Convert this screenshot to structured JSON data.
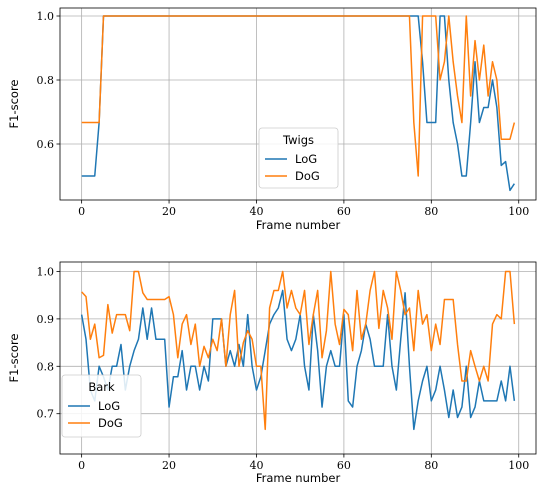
{
  "chart_data": [
    {
      "type": "line",
      "title": "",
      "xlabel": "Frame number",
      "ylabel": "F1-score",
      "xlim": [
        -4.95,
        103.95
      ],
      "ylim": [
        0.425,
        1.025
      ],
      "xticks": [
        0,
        20,
        40,
        60,
        80,
        100
      ],
      "yticks": [
        0.6,
        0.8,
        1.0
      ],
      "xtick_labels": [
        "0",
        "20",
        "40",
        "60",
        "80",
        "100"
      ],
      "ytick_labels": [
        "0.6",
        "0.8",
        "1.0"
      ],
      "grid": true,
      "legend": {
        "title": "Twigs",
        "placement": "lower center"
      },
      "series": [
        {
          "name": "LoG",
          "color": "#1f77b4",
          "x": [
            0,
            1,
            2,
            3,
            4,
            5,
            6,
            7,
            8,
            9,
            10,
            11,
            12,
            13,
            14,
            15,
            16,
            17,
            18,
            19,
            20,
            21,
            22,
            23,
            24,
            25,
            26,
            27,
            28,
            29,
            30,
            31,
            32,
            33,
            34,
            35,
            36,
            37,
            38,
            39,
            40,
            41,
            42,
            43,
            44,
            45,
            46,
            47,
            48,
            49,
            50,
            51,
            52,
            53,
            54,
            55,
            56,
            57,
            58,
            59,
            60,
            61,
            62,
            63,
            64,
            65,
            66,
            67,
            68,
            69,
            70,
            71,
            72,
            73,
            74,
            75,
            76,
            77,
            78,
            79,
            80,
            81,
            82,
            83,
            84,
            85,
            86,
            87,
            88,
            89,
            90,
            91,
            92,
            93,
            94,
            95,
            96,
            97,
            98,
            99
          ],
          "values": [
            0.5,
            0.5,
            0.5,
            0.5,
            0.667,
            1,
            1,
            1,
            1,
            1,
            1,
            1,
            1,
            1,
            1,
            1,
            1,
            1,
            1,
            1,
            1,
            1,
            1,
            1,
            1,
            1,
            1,
            1,
            1,
            1,
            1,
            1,
            1,
            1,
            1,
            1,
            1,
            1,
            1,
            1,
            1,
            1,
            1,
            1,
            1,
            1,
            1,
            1,
            1,
            1,
            1,
            1,
            1,
            1,
            1,
            1,
            1,
            1,
            1,
            1,
            1,
            1,
            1,
            1,
            1,
            1,
            1,
            1,
            1,
            1,
            1,
            1,
            1,
            1,
            1,
            1,
            1,
            1,
            0.857,
            0.667,
            0.667,
            0.667,
            1,
            1,
            0.8,
            0.667,
            0.6,
            0.5,
            0.5,
            0.667,
            0.857,
            0.667,
            0.714,
            0.714,
            0.8,
            0.714,
            0.533,
            0.545,
            0.455,
            0.476
          ]
        },
        {
          "name": "DoG",
          "color": "#ff7f0e",
          "x": [
            0,
            1,
            2,
            3,
            4,
            5,
            6,
            7,
            8,
            9,
            10,
            11,
            12,
            13,
            14,
            15,
            16,
            17,
            18,
            19,
            20,
            21,
            22,
            23,
            24,
            25,
            26,
            27,
            28,
            29,
            30,
            31,
            32,
            33,
            34,
            35,
            36,
            37,
            38,
            39,
            40,
            41,
            42,
            43,
            44,
            45,
            46,
            47,
            48,
            49,
            50,
            51,
            52,
            53,
            54,
            55,
            56,
            57,
            58,
            59,
            60,
            61,
            62,
            63,
            64,
            65,
            66,
            67,
            68,
            69,
            70,
            71,
            72,
            73,
            74,
            75,
            76,
            77,
            78,
            79,
            80,
            81,
            82,
            83,
            84,
            85,
            86,
            87,
            88,
            89,
            90,
            91,
            92,
            93,
            94,
            95,
            96,
            97,
            98,
            99
          ],
          "values": [
            0.667,
            0.667,
            0.667,
            0.667,
            0.667,
            1,
            1,
            1,
            1,
            1,
            1,
            1,
            1,
            1,
            1,
            1,
            1,
            1,
            1,
            1,
            1,
            1,
            1,
            1,
            1,
            1,
            1,
            1,
            1,
            1,
            1,
            1,
            1,
            1,
            1,
            1,
            1,
            1,
            1,
            1,
            1,
            1,
            1,
            1,
            1,
            1,
            1,
            1,
            1,
            1,
            1,
            1,
            1,
            1,
            1,
            1,
            1,
            1,
            1,
            1,
            1,
            1,
            1,
            1,
            1,
            1,
            1,
            1,
            1,
            1,
            1,
            1,
            1,
            1,
            1,
            1,
            0.667,
            0.5,
            1,
            1,
            1,
            1,
            0.8,
            0.857,
            1,
            0.857,
            0.75,
            0.667,
            1,
            0.75,
            0.923,
            0.8,
            0.909,
            0.75,
            0.857,
            0.8,
            0.615,
            0.615,
            0.615,
            0.667
          ]
        }
      ]
    },
    {
      "type": "line",
      "title": "",
      "xlabel": "Frame number",
      "ylabel": "F1-score",
      "xlim": [
        -4.95,
        103.95
      ],
      "ylim": [
        0.615,
        1.02
      ],
      "xticks": [
        0,
        20,
        40,
        60,
        80,
        100
      ],
      "yticks": [
        0.7,
        0.8,
        0.9,
        1.0
      ],
      "xtick_labels": [
        "0",
        "20",
        "40",
        "60",
        "80",
        "100"
      ],
      "ytick_labels": [
        "0.7",
        "0.8",
        "0.9",
        "1.0"
      ],
      "grid": true,
      "legend": {
        "title": "Bark",
        "placement": "lower left"
      },
      "series": [
        {
          "name": "LoG",
          "color": "#1f77b4",
          "x": [
            0,
            1,
            2,
            3,
            4,
            5,
            6,
            7,
            8,
            9,
            10,
            11,
            12,
            13,
            14,
            15,
            16,
            17,
            18,
            19,
            20,
            21,
            22,
            23,
            24,
            25,
            26,
            27,
            28,
            29,
            30,
            31,
            32,
            33,
            34,
            35,
            36,
            37,
            38,
            39,
            40,
            41,
            42,
            43,
            44,
            45,
            46,
            47,
            48,
            49,
            50,
            51,
            52,
            53,
            54,
            55,
            56,
            57,
            58,
            59,
            60,
            61,
            62,
            63,
            64,
            65,
            66,
            67,
            68,
            69,
            70,
            71,
            72,
            73,
            74,
            75,
            76,
            77,
            78,
            79,
            80,
            81,
            82,
            83,
            84,
            85,
            86,
            87,
            88,
            89,
            90,
            91,
            92,
            93,
            94,
            95,
            96,
            97,
            98,
            99
          ],
          "values": [
            0.909,
            0.857,
            0.75,
            0.727,
            0.8,
            0.778,
            0.75,
            0.8,
            0.8,
            0.846,
            0.75,
            0.8,
            0.833,
            0.857,
            0.923,
            0.857,
            0.923,
            0.857,
            0.857,
            0.857,
            0.714,
            0.778,
            0.778,
            0.833,
            0.75,
            0.8,
            0.8,
            0.75,
            0.8,
            0.769,
            0.9,
            0.9,
            0.9,
            0.8,
            0.833,
            0.8,
            0.846,
            0.8,
            0.909,
            0.8,
            0.75,
            0.778,
            0.833,
            0.889,
            0.909,
            0.923,
            0.96,
            0.857,
            0.833,
            0.857,
            0.909,
            0.8,
            0.75,
            0.909,
            0.833,
            0.714,
            0.8,
            0.833,
            0.8,
            0.8,
            0.909,
            0.727,
            0.714,
            0.8,
            0.833,
            0.889,
            0.857,
            0.8,
            0.8,
            0.8,
            0.909,
            0.8,
            0.75,
            0.857,
            0.955,
            0.8,
            0.667,
            0.727,
            0.769,
            0.8,
            0.727,
            0.75,
            0.8,
            0.75,
            0.692,
            0.75,
            0.692,
            0.714,
            0.8,
            0.692,
            0.714,
            0.769,
            0.727,
            0.727,
            0.727,
            0.727,
            0.769,
            0.727,
            0.8,
            0.727
          ]
        },
        {
          "name": "DoG",
          "color": "#ff7f0e",
          "x": [
            0,
            1,
            2,
            3,
            4,
            5,
            6,
            7,
            8,
            9,
            10,
            11,
            12,
            13,
            14,
            15,
            16,
            17,
            18,
            19,
            20,
            21,
            22,
            23,
            24,
            25,
            26,
            27,
            28,
            29,
            30,
            31,
            32,
            33,
            34,
            35,
            36,
            37,
            38,
            39,
            40,
            41,
            42,
            43,
            44,
            45,
            46,
            47,
            48,
            49,
            50,
            51,
            52,
            53,
            54,
            55,
            56,
            57,
            58,
            59,
            60,
            61,
            62,
            63,
            64,
            65,
            66,
            67,
            68,
            69,
            70,
            71,
            72,
            73,
            74,
            75,
            76,
            77,
            78,
            79,
            80,
            81,
            82,
            83,
            84,
            85,
            86,
            87,
            88,
            89,
            90,
            91,
            92,
            93,
            94,
            95,
            96,
            97,
            98,
            99
          ],
          "values": [
            0.957,
            0.947,
            0.857,
            0.889,
            0.818,
            0.823,
            0.93,
            0.87,
            0.909,
            0.909,
            0.909,
            0.875,
            1,
            1,
            0.955,
            0.941,
            0.941,
            0.941,
            0.941,
            0.941,
            0.947,
            0.909,
            0.818,
            0.889,
            0.909,
            0.846,
            0.889,
            0.8,
            0.842,
            0.818,
            0.857,
            0.833,
            0.9,
            0.8,
            0.909,
            0.96,
            0.8,
            0.85,
            0.875,
            0.857,
            0.8,
            0.8,
            0.667,
            0.923,
            0.96,
            0.96,
            1,
            0.923,
            0.96,
            0.923,
            0.909,
            0.96,
            0.846,
            0.909,
            0.96,
            0.818,
            0.875,
            1,
            0.889,
            0.846,
            0.92,
            0.909,
            0.833,
            0.96,
            0.857,
            0.889,
            0.96,
            1,
            0.88,
            0.96,
            0.923,
            0.857,
            1,
            0.96,
            0.909,
            0.923,
            0.833,
            0.96,
            0.889,
            0.909,
            0.833,
            0.889,
            0.846,
            0.941,
            0.941,
            0.941,
            0.846,
            0.769,
            0.769,
            0.833,
            0.8,
            0.769,
            0.8,
            0.769,
            0.889,
            0.909,
            0.9,
            1,
            1,
            0.889
          ]
        }
      ]
    }
  ]
}
